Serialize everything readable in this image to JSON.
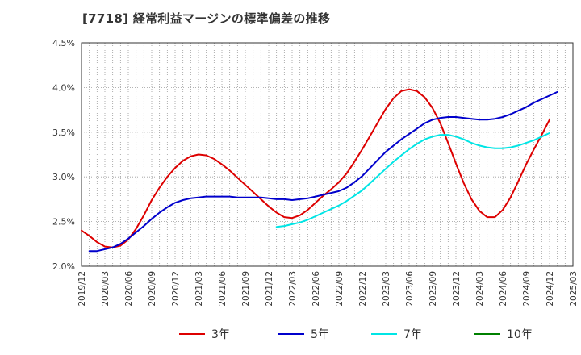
{
  "title": "[7718]  経常利益マージンの標準偏差の推移",
  "chart_data": {
    "type": "line",
    "title": "[7718]  経常利益マージンの標準偏差の推移",
    "xlabel": "",
    "ylabel": "",
    "ylim": [
      2.0,
      4.5
    ],
    "yticks": [
      2.0,
      2.5,
      3.0,
      3.5,
      4.0,
      4.5
    ],
    "ytick_labels": [
      "2.0%",
      "2.5%",
      "3.0%",
      "3.5%",
      "4.0%",
      "4.5%"
    ],
    "xlim": [
      "2019-12",
      "2025-03"
    ],
    "xtick_labels": [
      "2019/12",
      "2020/03",
      "2020/06",
      "2020/09",
      "2020/12",
      "2021/03",
      "2021/06",
      "2021/09",
      "2021/12",
      "2022/03",
      "2022/06",
      "2022/09",
      "2022/12",
      "2023/03",
      "2023/06",
      "2023/09",
      "2023/12",
      "2024/03",
      "2024/06",
      "2024/09",
      "2024/12",
      "2025/03"
    ],
    "grid": true,
    "legend_position": "bottom",
    "series": [
      {
        "name": "3年",
        "color": "#dd0000",
        "points": [
          [
            "2019-12",
            2.4
          ],
          [
            "2020-01",
            2.34
          ],
          [
            "2020-02",
            2.27
          ],
          [
            "2020-03",
            2.22
          ],
          [
            "2020-04",
            2.21
          ],
          [
            "2020-05",
            2.23
          ],
          [
            "2020-06",
            2.3
          ],
          [
            "2020-07",
            2.42
          ],
          [
            "2020-08",
            2.57
          ],
          [
            "2020-09",
            2.74
          ],
          [
            "2020-10",
            2.88
          ],
          [
            "2020-11",
            3.0
          ],
          [
            "2020-12",
            3.1
          ],
          [
            "2021-01",
            3.18
          ],
          [
            "2021-02",
            3.23
          ],
          [
            "2021-03",
            3.25
          ],
          [
            "2021-04",
            3.24
          ],
          [
            "2021-05",
            3.2
          ],
          [
            "2021-06",
            3.14
          ],
          [
            "2021-07",
            3.07
          ],
          [
            "2021-08",
            2.99
          ],
          [
            "2021-09",
            2.91
          ],
          [
            "2021-10",
            2.83
          ],
          [
            "2021-11",
            2.75
          ],
          [
            "2021-12",
            2.67
          ],
          [
            "2022-01",
            2.6
          ],
          [
            "2022-02",
            2.55
          ],
          [
            "2022-03",
            2.54
          ],
          [
            "2022-04",
            2.57
          ],
          [
            "2022-05",
            2.63
          ],
          [
            "2022-06",
            2.71
          ],
          [
            "2022-07",
            2.79
          ],
          [
            "2022-08",
            2.86
          ],
          [
            "2022-09",
            2.94
          ],
          [
            "2022-10",
            3.04
          ],
          [
            "2022-11",
            3.17
          ],
          [
            "2022-12",
            3.31
          ],
          [
            "2023-01",
            3.46
          ],
          [
            "2023-02",
            3.61
          ],
          [
            "2023-03",
            3.76
          ],
          [
            "2023-04",
            3.88
          ],
          [
            "2023-05",
            3.96
          ],
          [
            "2023-06",
            3.98
          ],
          [
            "2023-07",
            3.96
          ],
          [
            "2023-08",
            3.89
          ],
          [
            "2023-09",
            3.77
          ],
          [
            "2023-10",
            3.6
          ],
          [
            "2023-11",
            3.38
          ],
          [
            "2023-12",
            3.15
          ],
          [
            "2024-01",
            2.93
          ],
          [
            "2024-02",
            2.75
          ],
          [
            "2024-03",
            2.62
          ],
          [
            "2024-04",
            2.55
          ],
          [
            "2024-05",
            2.55
          ],
          [
            "2024-06",
            2.63
          ],
          [
            "2024-07",
            2.77
          ],
          [
            "2024-08",
            2.95
          ],
          [
            "2024-09",
            3.14
          ],
          [
            "2024-10",
            3.31
          ],
          [
            "2024-11",
            3.47
          ],
          [
            "2024-12",
            3.64
          ]
        ]
      },
      {
        "name": "5年",
        "color": "#0000cc",
        "points": [
          [
            "2020-01",
            2.17
          ],
          [
            "2020-02",
            2.17
          ],
          [
            "2020-03",
            2.19
          ],
          [
            "2020-04",
            2.21
          ],
          [
            "2020-05",
            2.25
          ],
          [
            "2020-06",
            2.31
          ],
          [
            "2020-07",
            2.38
          ],
          [
            "2020-08",
            2.45
          ],
          [
            "2020-09",
            2.53
          ],
          [
            "2020-10",
            2.6
          ],
          [
            "2020-11",
            2.66
          ],
          [
            "2020-12",
            2.71
          ],
          [
            "2021-01",
            2.74
          ],
          [
            "2021-02",
            2.76
          ],
          [
            "2021-03",
            2.77
          ],
          [
            "2021-04",
            2.78
          ],
          [
            "2021-05",
            2.78
          ],
          [
            "2021-06",
            2.78
          ],
          [
            "2021-07",
            2.78
          ],
          [
            "2021-08",
            2.77
          ],
          [
            "2021-09",
            2.77
          ],
          [
            "2021-10",
            2.77
          ],
          [
            "2021-11",
            2.77
          ],
          [
            "2021-12",
            2.76
          ],
          [
            "2022-01",
            2.75
          ],
          [
            "2022-02",
            2.75
          ],
          [
            "2022-03",
            2.74
          ],
          [
            "2022-04",
            2.75
          ],
          [
            "2022-05",
            2.76
          ],
          [
            "2022-06",
            2.78
          ],
          [
            "2022-07",
            2.8
          ],
          [
            "2022-08",
            2.82
          ],
          [
            "2022-09",
            2.84
          ],
          [
            "2022-10",
            2.88
          ],
          [
            "2022-11",
            2.94
          ],
          [
            "2022-12",
            3.01
          ],
          [
            "2023-01",
            3.1
          ],
          [
            "2023-02",
            3.19
          ],
          [
            "2023-03",
            3.28
          ],
          [
            "2023-04",
            3.35
          ],
          [
            "2023-05",
            3.42
          ],
          [
            "2023-06",
            3.48
          ],
          [
            "2023-07",
            3.54
          ],
          [
            "2023-08",
            3.6
          ],
          [
            "2023-09",
            3.64
          ],
          [
            "2023-10",
            3.66
          ],
          [
            "2023-11",
            3.67
          ],
          [
            "2023-12",
            3.67
          ],
          [
            "2024-01",
            3.66
          ],
          [
            "2024-02",
            3.65
          ],
          [
            "2024-03",
            3.64
          ],
          [
            "2024-04",
            3.64
          ],
          [
            "2024-05",
            3.65
          ],
          [
            "2024-06",
            3.67
          ],
          [
            "2024-07",
            3.7
          ],
          [
            "2024-08",
            3.74
          ],
          [
            "2024-09",
            3.78
          ],
          [
            "2024-10",
            3.83
          ],
          [
            "2024-11",
            3.87
          ],
          [
            "2024-12",
            3.91
          ],
          [
            "2025-01",
            3.95
          ]
        ]
      },
      {
        "name": "7年",
        "color": "#00e5e5",
        "points": [
          [
            "2022-01",
            2.44
          ],
          [
            "2022-02",
            2.45
          ],
          [
            "2022-03",
            2.47
          ],
          [
            "2022-04",
            2.49
          ],
          [
            "2022-05",
            2.52
          ],
          [
            "2022-06",
            2.56
          ],
          [
            "2022-07",
            2.6
          ],
          [
            "2022-08",
            2.64
          ],
          [
            "2022-09",
            2.68
          ],
          [
            "2022-10",
            2.73
          ],
          [
            "2022-11",
            2.79
          ],
          [
            "2022-12",
            2.85
          ],
          [
            "2023-01",
            2.93
          ],
          [
            "2023-02",
            3.01
          ],
          [
            "2023-03",
            3.09
          ],
          [
            "2023-04",
            3.17
          ],
          [
            "2023-05",
            3.24
          ],
          [
            "2023-06",
            3.31
          ],
          [
            "2023-07",
            3.37
          ],
          [
            "2023-08",
            3.42
          ],
          [
            "2023-09",
            3.45
          ],
          [
            "2023-10",
            3.47
          ],
          [
            "2023-11",
            3.47
          ],
          [
            "2023-12",
            3.45
          ],
          [
            "2024-01",
            3.42
          ],
          [
            "2024-02",
            3.38
          ],
          [
            "2024-03",
            3.35
          ],
          [
            "2024-04",
            3.33
          ],
          [
            "2024-05",
            3.32
          ],
          [
            "2024-06",
            3.32
          ],
          [
            "2024-07",
            3.33
          ],
          [
            "2024-08",
            3.35
          ],
          [
            "2024-09",
            3.38
          ],
          [
            "2024-10",
            3.41
          ],
          [
            "2024-11",
            3.45
          ],
          [
            "2024-12",
            3.49
          ]
        ]
      },
      {
        "name": "10年",
        "color": "#008000",
        "points": []
      }
    ]
  }
}
